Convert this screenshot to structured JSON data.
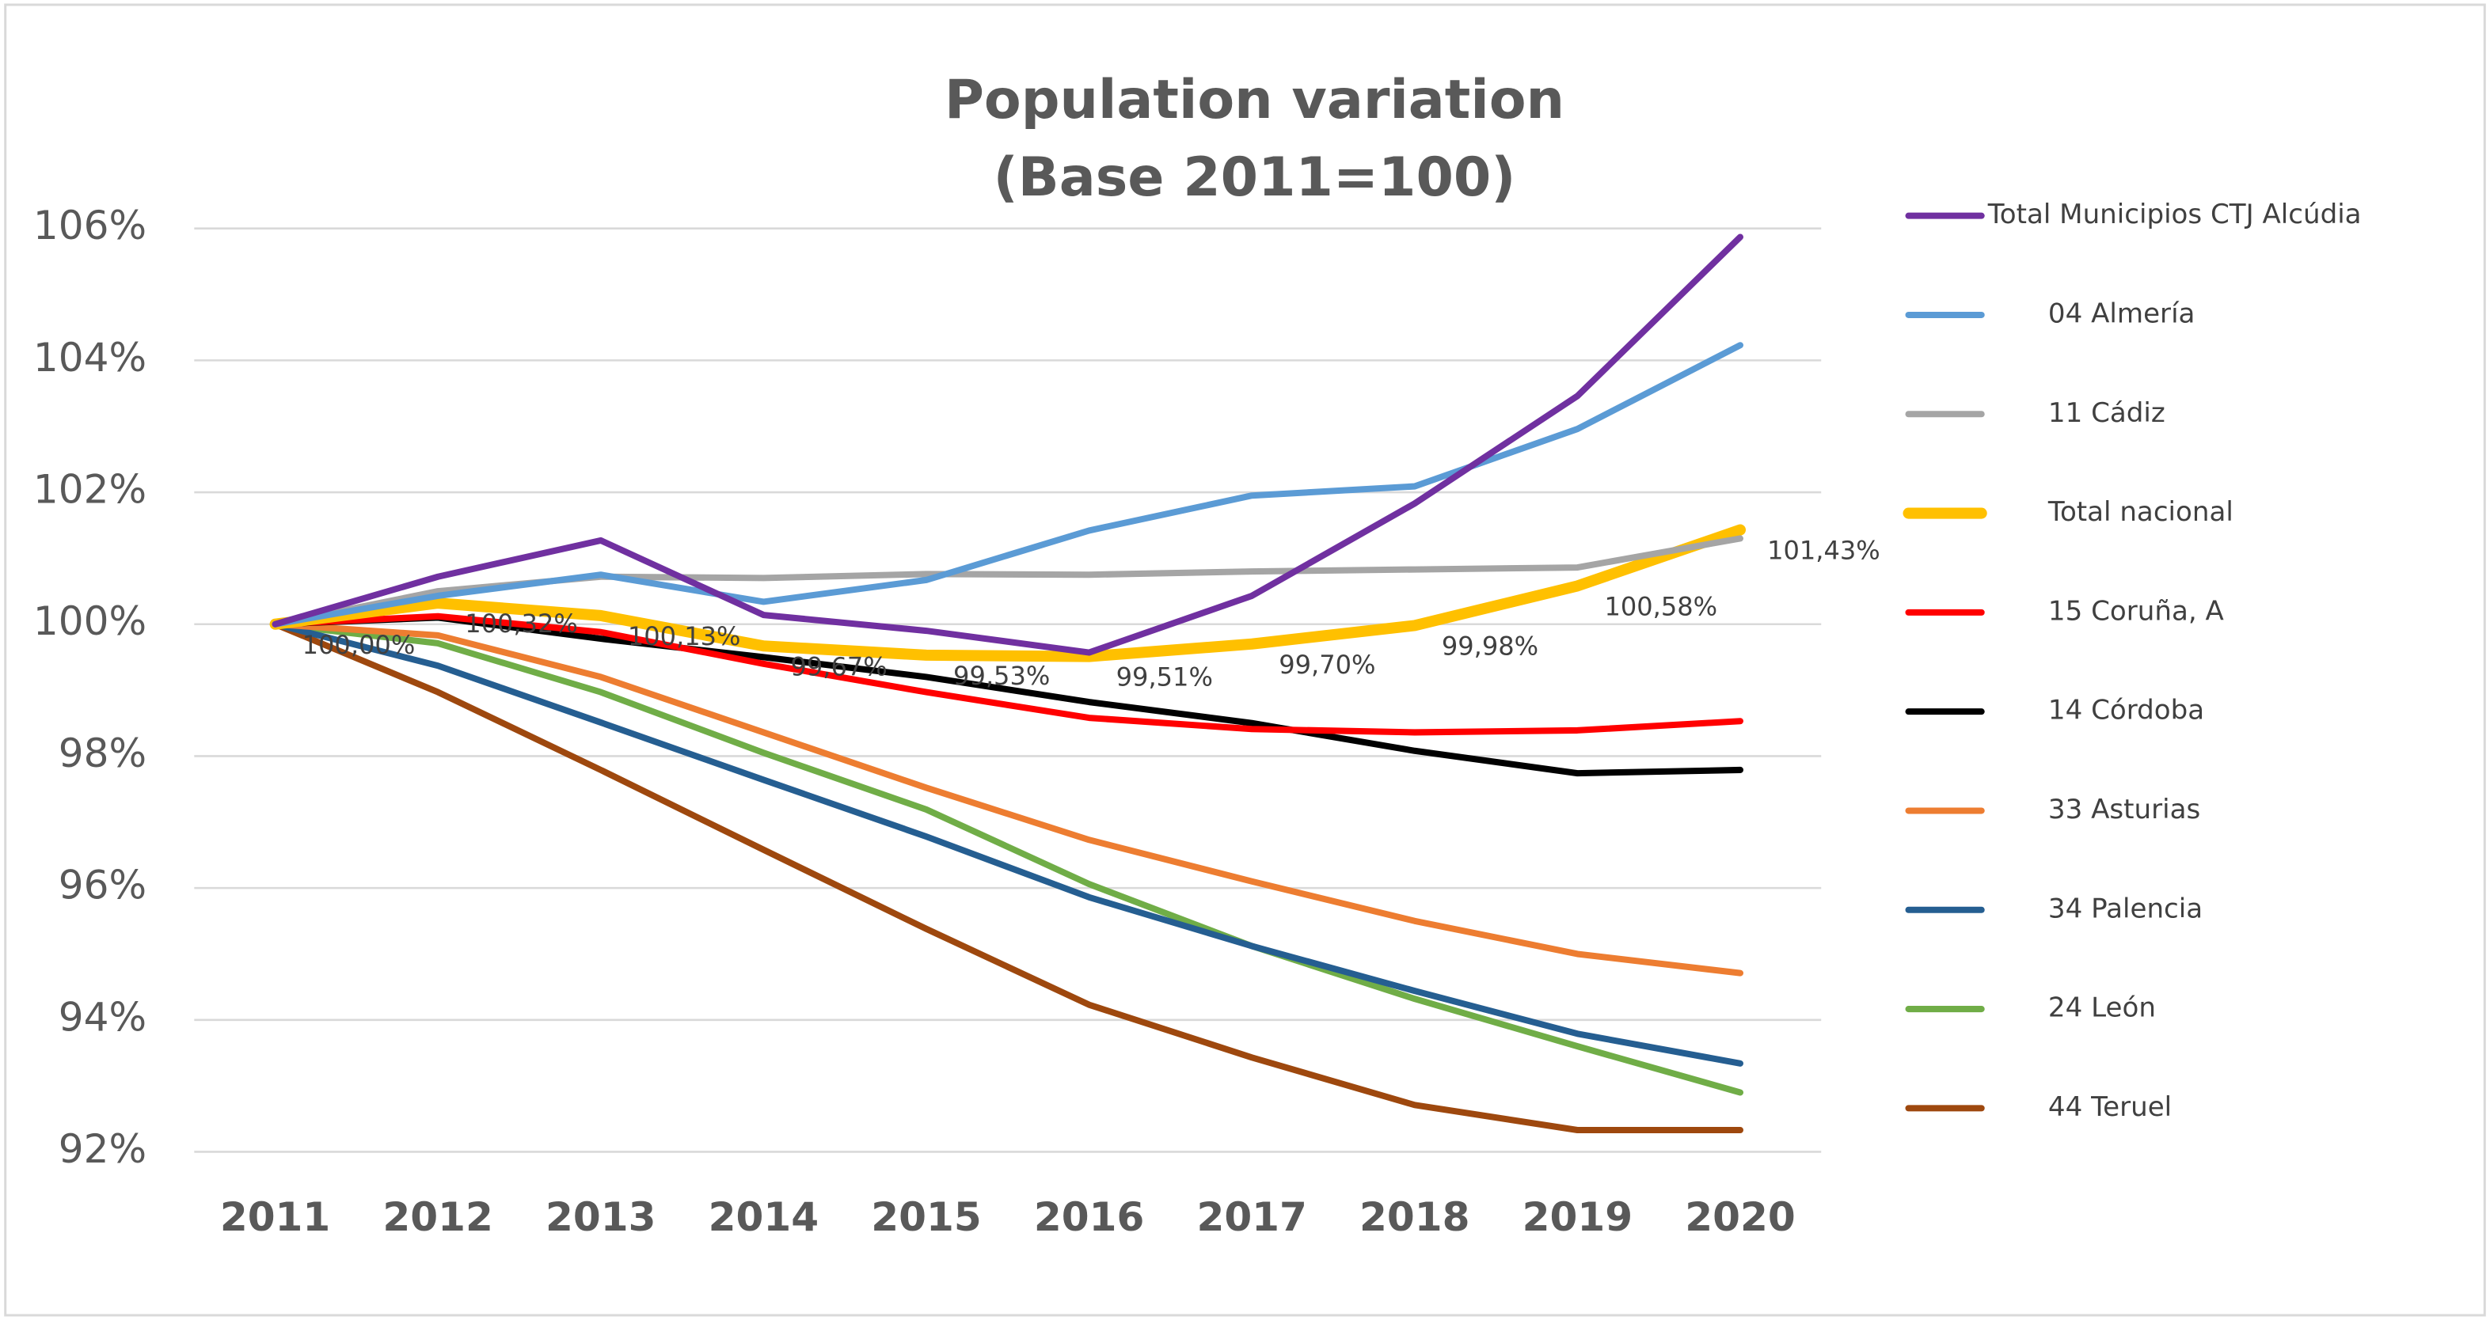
{
  "chart_data": {
    "type": "line",
    "title": "Population variation",
    "subtitle": "(Base 2011=100)",
    "categories": [
      "2011",
      "2012",
      "2013",
      "2014",
      "2015",
      "2016",
      "2017",
      "2018",
      "2019",
      "2020"
    ],
    "ylim": [
      92,
      106
    ],
    "yticks": [
      {
        "value": 92,
        "label": "92%"
      },
      {
        "value": 94,
        "label": "94%"
      },
      {
        "value": 96,
        "label": "96%"
      },
      {
        "value": 98,
        "label": "98%"
      },
      {
        "value": 100,
        "label": "100%"
      },
      {
        "value": 102,
        "label": "102%"
      },
      {
        "value": 104,
        "label": "104%"
      },
      {
        "value": 106,
        "label": "106%"
      }
    ],
    "grid": true,
    "legend": "right",
    "series": [
      {
        "name": "Total Municipios CTJ Alcúdia",
        "color": "#7030a0",
        "values": [
          100,
          100.72,
          101.27,
          100.14,
          99.9,
          99.57,
          100.43,
          101.83,
          103.46,
          105.87
        ]
      },
      {
        "name": "04 Almería",
        "color": "#5b9bd5",
        "values": [
          100,
          100.43,
          100.75,
          100.34,
          100.67,
          101.42,
          101.95,
          102.09,
          102.96,
          104.23
        ]
      },
      {
        "name": "11 Cádiz",
        "color": "#a5a5a5",
        "values": [
          100,
          100.5,
          100.72,
          100.7,
          100.76,
          100.75,
          100.8,
          100.83,
          100.86,
          101.3
        ]
      },
      {
        "name": "Total nacional",
        "color": "#ffc000",
        "values": [
          100,
          100.32,
          100.13,
          99.67,
          99.53,
          99.51,
          99.7,
          99.98,
          100.58,
          101.43
        ],
        "value_labels": [
          "100,00%",
          "100,32%",
          "100,13%",
          "99,67%",
          "99,53%",
          "99,51%",
          "99,70%",
          "99,98%",
          "100,58%",
          "101,43%"
        ]
      },
      {
        "name": "15 Coruña, A",
        "color": "#ff0000",
        "values": [
          100,
          100.12,
          99.88,
          99.4,
          98.97,
          98.58,
          98.41,
          98.36,
          98.39,
          98.53
        ]
      },
      {
        "name": "14 Córdoba",
        "color": "#000000",
        "values": [
          100,
          100.1,
          99.78,
          99.5,
          99.2,
          98.82,
          98.5,
          98.08,
          97.74,
          97.79
        ]
      },
      {
        "name": "33 Asturias",
        "color": "#ed7d31",
        "values": [
          100,
          99.83,
          99.2,
          98.36,
          97.52,
          96.73,
          96.1,
          95.5,
          95.0,
          94.71
        ]
      },
      {
        "name": "34 Palencia",
        "color": "#255e91",
        "values": [
          100,
          99.37,
          98.51,
          97.64,
          96.78,
          95.86,
          95.12,
          94.44,
          93.79,
          93.34
        ]
      },
      {
        "name": "24 León",
        "color": "#70ad47",
        "values": [
          100,
          99.71,
          98.97,
          98.05,
          97.19,
          96.06,
          95.12,
          94.32,
          93.6,
          92.9
        ]
      },
      {
        "name": "44 Teruel",
        "color": "#9e480e",
        "values": [
          100,
          98.97,
          97.79,
          96.58,
          95.38,
          94.23,
          93.43,
          92.71,
          92.33,
          92.33
        ]
      }
    ]
  }
}
